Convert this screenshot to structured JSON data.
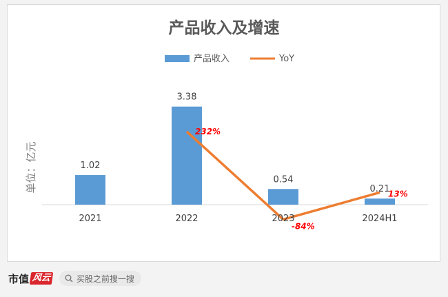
{
  "chart_data": {
    "type": "bar+line",
    "title": "产品收入及增速",
    "unit_label": "单位：亿元",
    "categories": [
      "2021",
      "2022",
      "2023",
      "2024H1"
    ],
    "series": [
      {
        "name": "产品收入",
        "type": "bar",
        "values": [
          1.02,
          3.38,
          0.54,
          0.21
        ],
        "labels": [
          "1.02",
          "3.38",
          "0.54",
          "0.21"
        ],
        "color": "#5b9bd5"
      },
      {
        "name": "YoY",
        "type": "line",
        "values": [
          null,
          232,
          -84,
          13
        ],
        "labels": [
          "",
          "232%",
          "-84%",
          "13%"
        ],
        "color": "#ed7d31"
      }
    ],
    "legend_position": "top-center",
    "grid": false,
    "bar_ylim": [
      0,
      3.8
    ],
    "line_ylim": [
      -130,
      440
    ],
    "line_label_color": "#ff0000"
  },
  "footer": {
    "brand": "市值",
    "brand_seal": "风云",
    "search_text": "买股之前搜一搜"
  }
}
